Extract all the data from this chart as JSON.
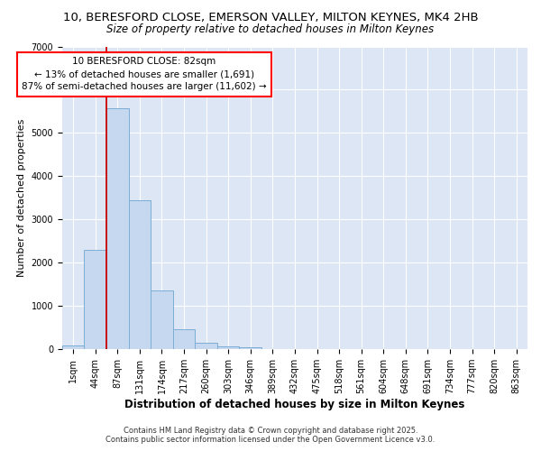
{
  "title1": "10, BERESFORD CLOSE, EMERSON VALLEY, MILTON KEYNES, MK4 2HB",
  "title2": "Size of property relative to detached houses in Milton Keynes",
  "xlabel": "Distribution of detached houses by size in Milton Keynes",
  "ylabel": "Number of detached properties",
  "categories": [
    "1sqm",
    "44sqm",
    "87sqm",
    "131sqm",
    "174sqm",
    "217sqm",
    "260sqm",
    "303sqm",
    "346sqm",
    "389sqm",
    "432sqm",
    "475sqm",
    "518sqm",
    "561sqm",
    "604sqm",
    "648sqm",
    "691sqm",
    "734sqm",
    "777sqm",
    "820sqm",
    "863sqm"
  ],
  "values": [
    80,
    2300,
    5580,
    3450,
    1370,
    470,
    160,
    70,
    50,
    0,
    0,
    0,
    0,
    0,
    0,
    0,
    0,
    0,
    0,
    0,
    0
  ],
  "bar_color": "#c5d8f0",
  "bar_edge_color": "#7baed6",
  "red_line_x": 1.5,
  "annotation_text": "10 BERESFORD CLOSE: 82sqm\n← 13% of detached houses are smaller (1,691)\n87% of semi-detached houses are larger (11,602) →",
  "annotation_box_color": "white",
  "annotation_box_edge_color": "red",
  "red_line_color": "#cc0000",
  "ylim": [
    0,
    7000
  ],
  "axes_background_color": "#dce6f5",
  "fig_background_color": "#ffffff",
  "grid_color": "#ffffff",
  "footer1": "Contains HM Land Registry data © Crown copyright and database right 2025.",
  "footer2": "Contains public sector information licensed under the Open Government Licence v3.0.",
  "title_fontsize": 9.5,
  "subtitle_fontsize": 8.5,
  "tick_fontsize": 7,
  "ylabel_fontsize": 8,
  "xlabel_fontsize": 8.5,
  "annotation_fontsize": 7.5,
  "footer_fontsize": 6
}
